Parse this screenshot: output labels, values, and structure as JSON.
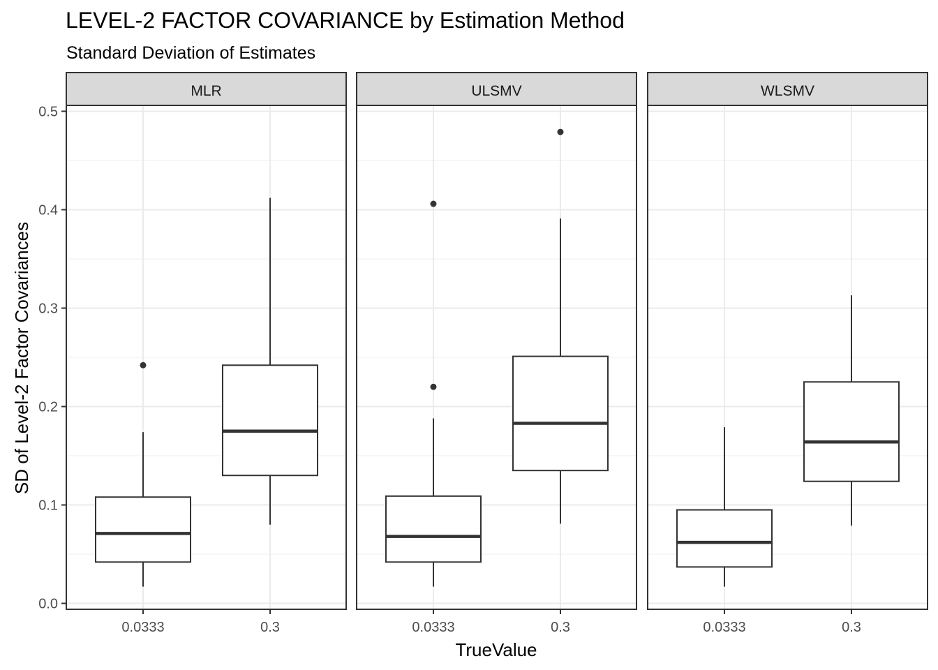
{
  "chart_data": {
    "type": "boxplot",
    "title": "LEVEL-2 FACTOR COVARIANCE by Estimation Method",
    "subtitle": "Standard Deviation of Estimates",
    "xlabel": "TrueValue",
    "ylabel": "SD of Level-2 Factor Covariances",
    "ylim": [
      -0.006,
      0.506
    ],
    "y_ticks": [
      0.0,
      0.1,
      0.2,
      0.3,
      0.4,
      0.5
    ],
    "y_tick_labels": [
      "0.0",
      "0.1",
      "0.2",
      "0.3",
      "0.4",
      "0.5"
    ],
    "categories": [
      "0.0333",
      "0.3"
    ],
    "grid": true,
    "legend": "none",
    "facets": [
      {
        "name": "MLR",
        "boxes": [
          {
            "category": "0.0333",
            "lower_whisker": 0.017,
            "q1": 0.042,
            "median": 0.071,
            "q3": 0.108,
            "upper_whisker": 0.174,
            "outliers": [
              0.242
            ]
          },
          {
            "category": "0.3",
            "lower_whisker": 0.08,
            "q1": 0.13,
            "median": 0.175,
            "q3": 0.242,
            "upper_whisker": 0.412,
            "outliers": []
          }
        ]
      },
      {
        "name": "ULSMV",
        "boxes": [
          {
            "category": "0.0333",
            "lower_whisker": 0.017,
            "q1": 0.042,
            "median": 0.068,
            "q3": 0.109,
            "upper_whisker": 0.188,
            "outliers": [
              0.22,
              0.406
            ]
          },
          {
            "category": "0.3",
            "lower_whisker": 0.081,
            "q1": 0.135,
            "median": 0.183,
            "q3": 0.251,
            "upper_whisker": 0.391,
            "outliers": [
              0.479
            ]
          }
        ]
      },
      {
        "name": "WLSMV",
        "boxes": [
          {
            "category": "0.0333",
            "lower_whisker": 0.017,
            "q1": 0.037,
            "median": 0.062,
            "q3": 0.095,
            "upper_whisker": 0.179,
            "outliers": []
          },
          {
            "category": "0.3",
            "lower_whisker": 0.079,
            "q1": 0.124,
            "median": 0.164,
            "q3": 0.225,
            "upper_whisker": 0.313,
            "outliers": []
          }
        ]
      }
    ]
  }
}
